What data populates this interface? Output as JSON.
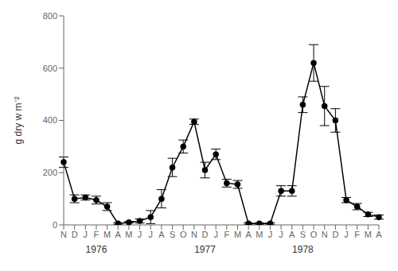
{
  "chart_data": {
    "type": "line",
    "categories": [
      "N",
      "D",
      "J",
      "F",
      "M",
      "A",
      "M",
      "J",
      "J",
      "A",
      "S",
      "O",
      "N",
      "D",
      "J",
      "F",
      "M",
      "A",
      "M",
      "J",
      "J",
      "A",
      "S",
      "O",
      "N",
      "D",
      "J",
      "F",
      "M",
      "A"
    ],
    "values": [
      240,
      100,
      105,
      95,
      70,
      5,
      10,
      15,
      30,
      100,
      220,
      300,
      395,
      210,
      270,
      160,
      155,
      5,
      5,
      5,
      130,
      130,
      460,
      620,
      455,
      400,
      95,
      70,
      40,
      30
    ],
    "errors": [
      20,
      15,
      10,
      15,
      15,
      3,
      3,
      8,
      25,
      35,
      35,
      25,
      10,
      30,
      20,
      15,
      15,
      3,
      3,
      3,
      20,
      20,
      30,
      70,
      75,
      45,
      10,
      12,
      8,
      8
    ],
    "ylabel": "g dry w m⁻²",
    "ylim": [
      0,
      800
    ],
    "yticks": [
      0,
      200,
      400,
      600,
      800
    ],
    "color": "#000000",
    "marker": "circle",
    "grid": false,
    "annotations": [
      {
        "text": "1976",
        "x": 3
      },
      {
        "text": "1977",
        "x": 13
      },
      {
        "text": "1978",
        "x": 22
      }
    ]
  }
}
